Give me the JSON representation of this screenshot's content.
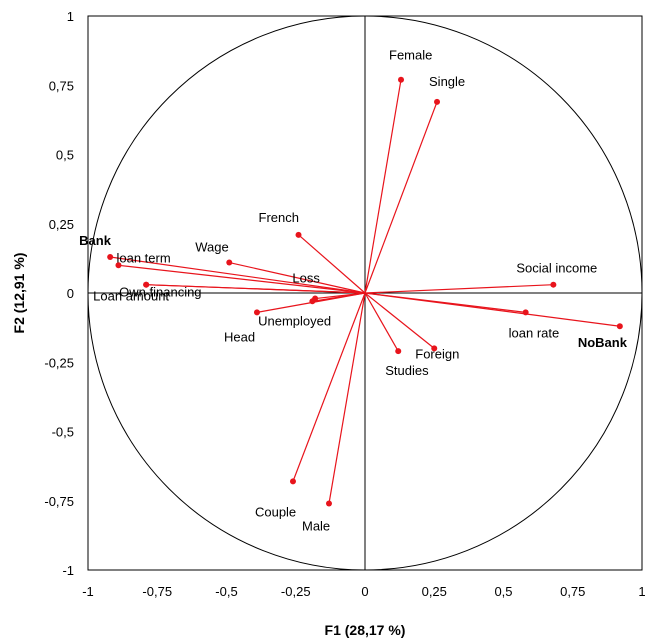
{
  "chart_data": {
    "type": "scatter",
    "subtype": "correlation-circle",
    "xlabel": "F1 (28,17 %)",
    "ylabel": "F2 (12,91 %)",
    "xlim": [
      -1,
      1
    ],
    "ylim": [
      -1,
      1
    ],
    "xticks": [
      "-1",
      "-0,75",
      "-0,5",
      "-0,25",
      "0",
      "0,25",
      "0,5",
      "0,75",
      "1"
    ],
    "yticks": [
      "-1",
      "-0,75",
      "-0,5",
      "-0,25",
      "0",
      "0,25",
      "0,5",
      "0,75",
      "1"
    ],
    "grid": false,
    "unit_circle": true,
    "vector_color": "#e8141c",
    "circle_color": "#000000",
    "points": [
      {
        "label": "Female",
        "x": 0.13,
        "y": 0.77,
        "bold": false
      },
      {
        "label": "Single",
        "x": 0.26,
        "y": 0.69,
        "bold": false
      },
      {
        "label": "French",
        "x": -0.24,
        "y": 0.21,
        "bold": false
      },
      {
        "label": "Wage",
        "x": -0.49,
        "y": 0.11,
        "bold": false
      },
      {
        "label": "Loss",
        "x": -0.19,
        "y": -0.03,
        "bold": false
      },
      {
        "label": "Bank",
        "x": -0.92,
        "y": 0.13,
        "bold": true
      },
      {
        "label": "loan term",
        "x": -0.89,
        "y": 0.1,
        "bold": false
      },
      {
        "label": "Own financing",
        "x": -0.79,
        "y": 0.03,
        "bold": false
      },
      {
        "label": "Loan amount",
        "x": -0.79,
        "y": 0.03,
        "bold": false
      },
      {
        "label": "Head",
        "x": -0.39,
        "y": -0.07,
        "bold": false
      },
      {
        "label": "Unemployed",
        "x": -0.18,
        "y": -0.02,
        "bold": false
      },
      {
        "label": "Social income",
        "x": 0.68,
        "y": 0.03,
        "bold": false
      },
      {
        "label": "loan rate",
        "x": 0.58,
        "y": -0.07,
        "bold": false
      },
      {
        "label": "NoBank",
        "x": 0.92,
        "y": -0.12,
        "bold": true
      },
      {
        "label": "Studies",
        "x": 0.12,
        "y": -0.21,
        "bold": false
      },
      {
        "label": "Foreign",
        "x": 0.25,
        "y": -0.2,
        "bold": false
      },
      {
        "label": "Couple",
        "x": -0.26,
        "y": -0.68,
        "bold": false
      },
      {
        "label": "Male",
        "x": -0.13,
        "y": -0.76,
        "bold": false
      }
    ]
  }
}
